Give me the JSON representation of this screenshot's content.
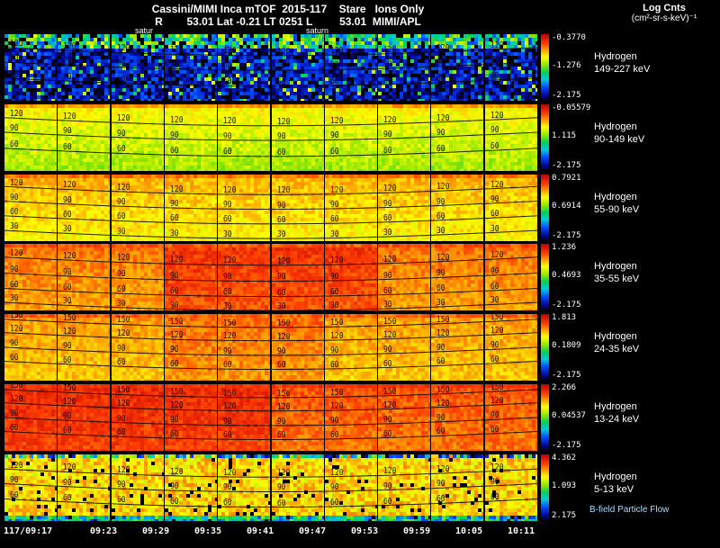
{
  "header": {
    "title_line1": "Cassini/MIMI Inca mTOF  2015-117    Stare   Ions Only",
    "title_line2": "R        53.01 Lat -0.21 LT 0251 L         53.01  MIMI/APL",
    "log_units_line1": "Log Cnts",
    "log_units_line2": "(cm²-sr-s-keV)⁻¹"
  },
  "saturn_markers": [
    "satur",
    "saturn"
  ],
  "time_axis": [
    "117/09:17",
    "09:23",
    "09:29",
    "09:35",
    "09:41",
    "09:47",
    "09:53",
    "09:59",
    "10:05",
    "10:11"
  ],
  "footer": {
    "bfield_label": "B-field Particle Flow"
  },
  "rows": [
    {
      "species": "Hydrogen",
      "energy": "149-227 keV",
      "cb_max": "-0.3770",
      "cb_mid": "-1.276",
      "cb_min": "-2.175",
      "contours": [
        {
          "label": "120",
          "y": 0.26
        },
        {
          "label": "90",
          "y": 0.48
        },
        {
          "label": "60",
          "y": 0.72
        }
      ],
      "render": {
        "base": 0.14,
        "spread": 0.12,
        "grad": 0.0,
        "speckle": 0.12,
        "black": 0.15,
        "topBand": {
          "rows": 4,
          "value": 0.42,
          "spread": 0.22
        }
      }
    },
    {
      "species": "Hydrogen",
      "energy": "90-149 keV",
      "cb_max": "-0.05579",
      "cb_mid": "1.115",
      "cb_min": "-2.175",
      "contours": [
        {
          "label": "120",
          "y": 0.26
        },
        {
          "label": "90",
          "y": 0.48
        },
        {
          "label": "60",
          "y": 0.72
        }
      ],
      "render": {
        "base": 0.62,
        "spread": 0.05,
        "grad": 0.1,
        "topBand": {
          "rows": 1,
          "value": 0.76,
          "spread": 0.05
        }
      }
    },
    {
      "species": "Hydrogen",
      "energy": "55-90 keV",
      "cb_max": "0.7921",
      "cb_mid": "0.6914",
      "cb_min": "-2.175",
      "contours": [
        {
          "label": "120",
          "y": 0.24
        },
        {
          "label": "90",
          "y": 0.46
        },
        {
          "label": "60",
          "y": 0.68
        },
        {
          "label": "30",
          "y": 0.9
        }
      ],
      "render": {
        "base": 0.7,
        "spread": 0.05,
        "grad": 0.08,
        "topBand": {
          "rows": 1,
          "value": 0.8,
          "spread": 0.05
        }
      }
    },
    {
      "species": "Hydrogen",
      "energy": "35-55 keV",
      "cb_max": "1.236",
      "cb_mid": "0.4693",
      "cb_min": "-2.175",
      "contours": [
        {
          "label": "120",
          "y": 0.26
        },
        {
          "label": "90",
          "y": 0.5
        },
        {
          "label": "60",
          "y": 0.73
        },
        {
          "label": "30",
          "y": 0.94
        }
      ],
      "render": {
        "base": 0.78,
        "spread": 0.05,
        "grad": 0.05,
        "hot": 0.08,
        "hotTiles": [
          3,
          4,
          5,
          6
        ],
        "topBand": {
          "rows": 1,
          "value": 0.84,
          "spread": 0.05
        }
      }
    },
    {
      "species": "Hydrogen",
      "energy": "24-35 keV",
      "cb_max": "1.813",
      "cb_mid": "0.1809",
      "cb_min": "-2.175",
      "contours": [
        {
          "label": "150",
          "y": 0.14
        },
        {
          "label": "120",
          "y": 0.34
        },
        {
          "label": "90",
          "y": 0.56
        },
        {
          "label": "60",
          "y": 0.77
        }
      ],
      "render": {
        "base": 0.74,
        "spread": 0.05,
        "grad": 0.05,
        "hot": 0.05,
        "hotTiles": [
          3,
          4,
          5
        ],
        "topBand": {
          "rows": 1,
          "value": 0.82,
          "spread": 0.05
        }
      }
    },
    {
      "species": "Hydrogen",
      "energy": "13-24 keV",
      "cb_max": "2.266",
      "cb_mid": "0.04537",
      "cb_min": "-2.175",
      "contours": [
        {
          "label": "150",
          "y": 0.14
        },
        {
          "label": "120",
          "y": 0.34
        },
        {
          "label": "90",
          "y": 0.56
        },
        {
          "label": "60",
          "y": 0.77
        }
      ],
      "render": {
        "base": 0.82,
        "spread": 0.05,
        "grad": 0.04,
        "hot": 0.06,
        "hotTiles": [
          0,
          1,
          2,
          3,
          4
        ],
        "topBand": {
          "rows": 1,
          "value": 0.88,
          "spread": 0.04
        }
      }
    },
    {
      "species": "Hydrogen",
      "energy": "5-13 keV",
      "cb_max": "4.362",
      "cb_mid": "1.093",
      "cb_min": "2.175",
      "contours": [
        {
          "label": "120",
          "y": 0.28
        },
        {
          "label": "90",
          "y": 0.5
        },
        {
          "label": "60",
          "y": 0.73
        }
      ],
      "render": {
        "base": 0.7,
        "spread": 0.09,
        "grad": 0.0,
        "black": 0.05,
        "topBand": {
          "rows": 1,
          "value": 0.45,
          "spread": 0.35
        },
        "bottomBand": {
          "rows": 2,
          "value": 0.38,
          "spread": 0.18
        }
      }
    }
  ],
  "render": {
    "palette": [
      {
        "v": 0.0,
        "c": "#000000"
      },
      {
        "v": 0.08,
        "c": "#00008c"
      },
      {
        "v": 0.22,
        "c": "#0046ff"
      },
      {
        "v": 0.34,
        "c": "#00c8dc"
      },
      {
        "v": 0.45,
        "c": "#00d25a"
      },
      {
        "v": 0.56,
        "c": "#96e600"
      },
      {
        "v": 0.66,
        "c": "#ffff00"
      },
      {
        "v": 0.76,
        "c": "#ffa000"
      },
      {
        "v": 0.86,
        "c": "#ff3c00"
      },
      {
        "v": 1.0,
        "c": "#be0000"
      }
    ],
    "colorbar_css": "linear-gradient(to bottom,#be0000 0%,#ff3c00 14%,#ffa000 24%,#ffff00 34%,#96e600 46%,#00d25a 57%,#00c8dc 68%,#0046ff 80%,#00008c 93%,#000000 100%)"
  },
  "chart_data": {
    "type": "heatmap",
    "title": "Cassini/MIMI Inca mTOF 2015-117 Stare Ions Only",
    "subtitle": "R 53.01 Lat -0.21 LT 0251 L 53.01 MIMI/APL",
    "colorbar_label": "Log Cnts (cm²-sr-s-keV)⁻¹",
    "x_ticks": [
      "117/09:17",
      "09:23",
      "09:29",
      "09:35",
      "09:41",
      "09:47",
      "09:53",
      "09:59",
      "10:05",
      "10:11"
    ],
    "frames_per_panel": 10,
    "contour_levels": [
      30,
      60,
      90,
      120,
      150
    ],
    "legend_position": "right",
    "panels": [
      {
        "name": "Hydrogen 149-227 keV",
        "colorbar_ticks": [
          "-0.3770",
          "-1.276",
          "-2.175"
        ],
        "dominant_appearance": "dark blue/black with sparse cyan-green speckle, brighter green-yellow band at top"
      },
      {
        "name": "Hydrogen 90-149 keV",
        "colorbar_ticks": [
          "-0.05579",
          "1.115",
          "-2.175"
        ],
        "dominant_appearance": "yellow-green, orange strip at top edge"
      },
      {
        "name": "Hydrogen 55-90 keV",
        "colorbar_ticks": [
          "0.7921",
          "0.6914",
          "-2.175"
        ],
        "dominant_appearance": "yellow-orange"
      },
      {
        "name": "Hydrogen 35-55 keV",
        "colorbar_ticks": [
          "1.236",
          "0.4693",
          "-2.175"
        ],
        "dominant_appearance": "orange-red with dark red core in central frames"
      },
      {
        "name": "Hydrogen 24-35 keV",
        "colorbar_ticks": [
          "1.813",
          "0.1809",
          "-2.175"
        ],
        "dominant_appearance": "orange-red"
      },
      {
        "name": "Hydrogen 13-24 keV",
        "colorbar_ticks": [
          "2.266",
          "0.04537",
          "-2.175"
        ],
        "dominant_appearance": "bright red, strongest on left/central frames"
      },
      {
        "name": "Hydrogen 5-13 keV",
        "colorbar_ticks": [
          "4.362",
          "1.093",
          "2.175"
        ],
        "dominant_appearance": "orange with black dropouts at top and green-blue lower edge"
      }
    ]
  }
}
